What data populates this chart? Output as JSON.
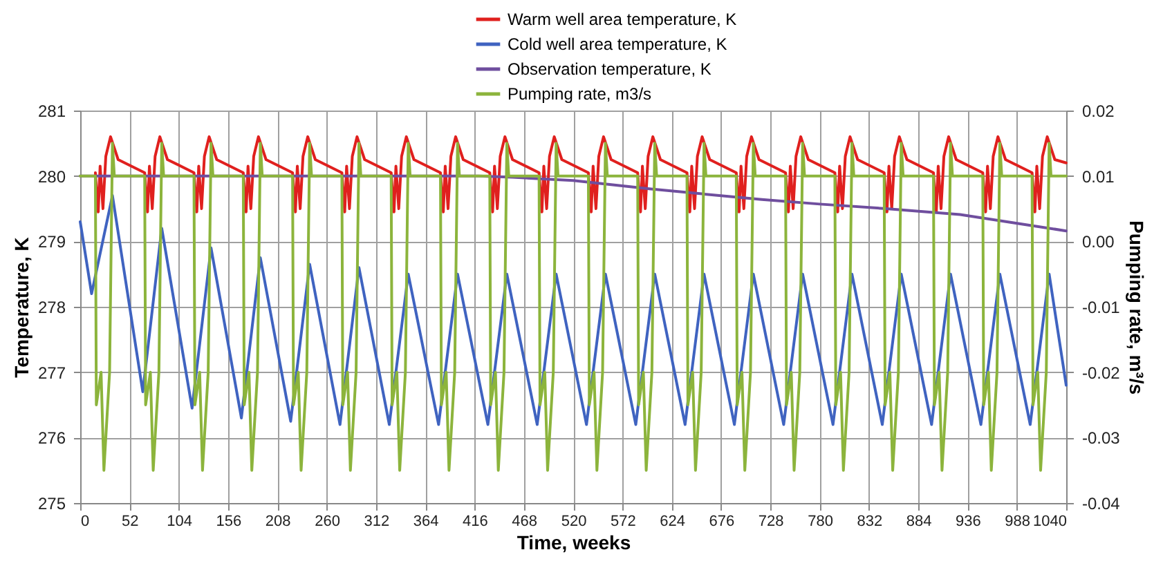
{
  "chart_data": {
    "type": "line",
    "xlabel": "Time, weeks",
    "ylabel": "Temperature, K",
    "y2label": "Pumping rate, m³/s",
    "legend": "top",
    "grid": true,
    "line_style": "solid",
    "xlim": [
      0,
      1040
    ],
    "xticks": [
      0,
      52,
      104,
      156,
      208,
      260,
      312,
      364,
      416,
      468,
      520,
      572,
      624,
      676,
      728,
      780,
      832,
      884,
      936,
      988,
      1040
    ],
    "ylim": [
      275,
      281
    ],
    "yticks": [
      275,
      276,
      277,
      278,
      279,
      280,
      281
    ],
    "y2lim": [
      -0.04,
      0.02
    ],
    "y2ticks": [
      -0.04,
      -0.03,
      -0.02,
      -0.01,
      {
        "value": 0,
        "label": "0.00"
      },
      0.01,
      0.02
    ],
    "series": [
      {
        "name": "Warm well area temperature, K",
        "color": "#e0201e",
        "x": [
          16,
          19,
          21,
          24,
          27,
          32,
          40,
          68,
          71,
          73,
          76,
          79,
          84,
          92,
          120,
          123,
          125,
          128,
          131,
          136,
          144,
          172,
          175,
          177,
          180,
          183,
          188,
          196,
          224,
          227,
          229,
          232,
          235,
          240,
          248,
          276,
          279,
          281,
          284,
          287,
          292,
          300,
          328,
          331,
          333,
          336,
          339,
          344,
          352,
          380,
          383,
          385,
          388,
          391,
          396,
          404,
          432,
          435,
          437,
          440,
          443,
          448,
          456,
          484,
          487,
          489,
          492,
          495,
          500,
          508,
          536,
          539,
          541,
          544,
          547,
          552,
          560,
          588,
          591,
          593,
          596,
          599,
          604,
          612,
          640,
          643,
          645,
          648,
          651,
          656,
          664,
          692,
          695,
          697,
          700,
          703,
          708,
          716,
          744,
          747,
          749,
          752,
          755,
          760,
          768,
          796,
          799,
          801,
          804,
          807,
          812,
          820,
          848,
          851,
          853,
          856,
          859,
          864,
          872,
          900,
          903,
          905,
          908,
          911,
          916,
          924,
          952,
          955,
          957,
          960,
          963,
          968,
          976,
          1004,
          1007,
          1009,
          1012,
          1015,
          1020,
          1028,
          1040
        ],
        "values": [
          280.05,
          279.45,
          280.15,
          279.5,
          280.3,
          280.6,
          280.25,
          280.05,
          279.45,
          280.15,
          279.5,
          280.3,
          280.6,
          280.25,
          280.05,
          279.45,
          280.15,
          279.5,
          280.3,
          280.6,
          280.25,
          280.05,
          279.45,
          280.15,
          279.5,
          280.3,
          280.6,
          280.25,
          280.05,
          279.45,
          280.15,
          279.5,
          280.3,
          280.6,
          280.25,
          280.05,
          279.45,
          280.15,
          279.5,
          280.3,
          280.6,
          280.25,
          280.05,
          279.45,
          280.15,
          279.5,
          280.3,
          280.6,
          280.25,
          280.05,
          279.45,
          280.15,
          279.5,
          280.3,
          280.6,
          280.25,
          280.05,
          279.45,
          280.15,
          279.5,
          280.3,
          280.6,
          280.25,
          280.05,
          279.45,
          280.15,
          279.5,
          280.3,
          280.6,
          280.25,
          280.05,
          279.45,
          280.15,
          279.5,
          280.3,
          280.6,
          280.25,
          280.05,
          279.45,
          280.15,
          279.5,
          280.3,
          280.6,
          280.25,
          280.05,
          279.45,
          280.15,
          279.5,
          280.3,
          280.6,
          280.25,
          280.05,
          279.45,
          280.15,
          279.5,
          280.3,
          280.6,
          280.25,
          280.05,
          279.45,
          280.15,
          279.5,
          280.3,
          280.6,
          280.25,
          280.05,
          279.45,
          280.15,
          279.5,
          280.3,
          280.6,
          280.25,
          280.05,
          279.45,
          280.15,
          279.5,
          280.3,
          280.6,
          280.25,
          280.05,
          279.45,
          280.15,
          279.5,
          280.3,
          280.6,
          280.25,
          280.05,
          279.45,
          280.15,
          279.5,
          280.3,
          280.6,
          280.25,
          280.05,
          279.45,
          280.15,
          279.5,
          280.3,
          280.6,
          280.25,
          280.2
        ]
      },
      {
        "name": "Cold well area temperature, K",
        "color": "#3f63c0",
        "x": [
          0,
          12,
          34,
          66,
          86,
          118,
          138,
          170,
          190,
          222,
          242,
          274,
          294,
          326,
          346,
          378,
          398,
          430,
          450,
          482,
          502,
          534,
          554,
          586,
          606,
          638,
          658,
          690,
          710,
          742,
          762,
          794,
          814,
          846,
          866,
          898,
          918,
          950,
          970,
          1002,
          1022,
          1040
        ],
        "values": [
          279.3,
          278.2,
          279.7,
          276.7,
          279.2,
          276.45,
          278.9,
          276.3,
          278.75,
          276.25,
          278.65,
          276.2,
          278.6,
          276.2,
          278.5,
          276.2,
          278.5,
          276.2,
          278.5,
          276.2,
          278.5,
          276.2,
          278.5,
          276.2,
          278.5,
          276.2,
          278.5,
          276.2,
          278.5,
          276.2,
          278.5,
          276.2,
          278.5,
          276.2,
          278.5,
          276.2,
          278.5,
          276.2,
          278.5,
          276.2,
          278.5,
          276.8
        ]
      },
      {
        "name": "Observation temperature, K",
        "color": "#6f4e9e",
        "x": [
          0,
          420,
          456,
          520,
          602,
          719,
          780,
          850,
          928,
          1000,
          1040
        ],
        "values": [
          280,
          280,
          279.98,
          279.93,
          279.8,
          279.64,
          279.57,
          279.5,
          279.41,
          279.25,
          279.16
        ]
      },
      {
        "name": "Pumping rate, m3/s",
        "color": "#8cb43c",
        "axis": "y2",
        "x": [
          0,
          16,
          17,
          22,
          25,
          31,
          34,
          36,
          68,
          69,
          74,
          77,
          83,
          86,
          88,
          120,
          121,
          126,
          129,
          135,
          138,
          140,
          172,
          173,
          178,
          181,
          187,
          190,
          192,
          224,
          225,
          230,
          233,
          239,
          242,
          244,
          276,
          277,
          282,
          285,
          291,
          294,
          296,
          328,
          329,
          334,
          337,
          343,
          346,
          348,
          380,
          381,
          386,
          389,
          395,
          398,
          400,
          432,
          433,
          438,
          441,
          447,
          450,
          452,
          484,
          485,
          490,
          493,
          499,
          502,
          504,
          536,
          537,
          542,
          545,
          551,
          554,
          556,
          588,
          589,
          594,
          597,
          603,
          606,
          608,
          640,
          641,
          646,
          649,
          655,
          658,
          660,
          692,
          693,
          698,
          701,
          707,
          710,
          712,
          744,
          745,
          750,
          753,
          759,
          762,
          764,
          796,
          797,
          802,
          805,
          811,
          814,
          816,
          848,
          849,
          854,
          857,
          863,
          866,
          868,
          900,
          901,
          906,
          909,
          915,
          918,
          920,
          952,
          953,
          958,
          961,
          967,
          970,
          972,
          1004,
          1005,
          1010,
          1013,
          1019,
          1022,
          1024,
          1040
        ],
        "values": [
          0.01,
          0.01,
          -0.025,
          -0.02,
          -0.035,
          -0.02,
          0.015,
          0.01,
          0.01,
          -0.025,
          -0.02,
          -0.035,
          -0.02,
          0.015,
          0.01,
          0.01,
          -0.025,
          -0.02,
          -0.035,
          -0.02,
          0.015,
          0.01,
          0.01,
          -0.025,
          -0.02,
          -0.035,
          -0.02,
          0.015,
          0.01,
          0.01,
          -0.025,
          -0.02,
          -0.035,
          -0.02,
          0.015,
          0.01,
          0.01,
          -0.025,
          -0.02,
          -0.035,
          -0.02,
          0.015,
          0.01,
          0.01,
          -0.025,
          -0.02,
          -0.035,
          -0.02,
          0.015,
          0.01,
          0.01,
          -0.025,
          -0.02,
          -0.035,
          -0.02,
          0.015,
          0.01,
          0.01,
          -0.025,
          -0.02,
          -0.035,
          -0.02,
          0.015,
          0.01,
          0.01,
          -0.025,
          -0.02,
          -0.035,
          -0.02,
          0.015,
          0.01,
          0.01,
          -0.025,
          -0.02,
          -0.035,
          -0.02,
          0.015,
          0.01,
          0.01,
          -0.025,
          -0.02,
          -0.035,
          -0.02,
          0.015,
          0.01,
          0.01,
          -0.025,
          -0.02,
          -0.035,
          -0.02,
          0.015,
          0.01,
          0.01,
          -0.025,
          -0.02,
          -0.035,
          -0.02,
          0.015,
          0.01,
          0.01,
          -0.025,
          -0.02,
          -0.035,
          -0.02,
          0.015,
          0.01,
          0.01,
          -0.025,
          -0.02,
          -0.035,
          -0.02,
          0.015,
          0.01,
          0.01,
          -0.025,
          -0.02,
          -0.035,
          -0.02,
          0.015,
          0.01,
          0.01,
          -0.025,
          -0.02,
          -0.035,
          -0.02,
          0.015,
          0.01,
          0.01,
          -0.025,
          -0.02,
          -0.035,
          -0.02,
          0.015,
          0.01,
          0.01,
          -0.025,
          -0.02,
          -0.035,
          -0.02,
          0.015,
          0.01,
          0.01
        ]
      }
    ]
  }
}
